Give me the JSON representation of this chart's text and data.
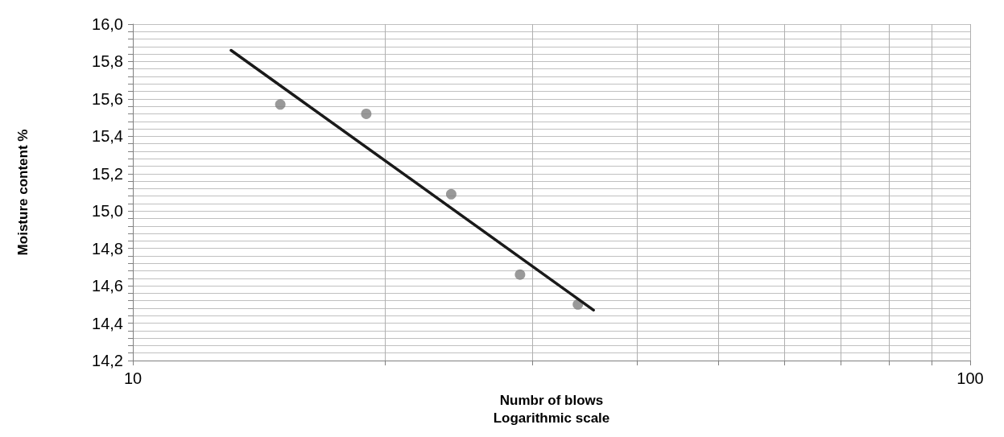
{
  "chart_data": {
    "type": "scatter",
    "xlabel": "Numbr of blows\nLogarithmic scale",
    "ylabel": "Moisture content %",
    "log": "x",
    "grid": true,
    "marker": "circle",
    "xlim": [
      10,
      100
    ],
    "xticks": [
      10,
      {
        "value": 20,
        "label": null
      },
      {
        "value": 30,
        "label": null
      },
      {
        "value": 40,
        "label": null
      },
      {
        "value": 50,
        "label": null
      },
      {
        "value": 60,
        "label": null
      },
      {
        "value": 70,
        "label": null
      },
      {
        "value": 80,
        "label": null
      },
      {
        "value": 90,
        "label": null
      },
      100
    ],
    "ylim": [
      14.2,
      16.0
    ],
    "yticks": [
      {
        "value": 14.2,
        "label": "14,2"
      },
      {
        "value": 14.24,
        "label": null
      },
      {
        "value": 14.28,
        "label": null
      },
      {
        "value": 14.32,
        "label": null
      },
      {
        "value": 14.36,
        "label": null
      },
      {
        "value": 14.4,
        "label": "14,4"
      },
      {
        "value": 14.44,
        "label": null
      },
      {
        "value": 14.48,
        "label": null
      },
      {
        "value": 14.52,
        "label": null
      },
      {
        "value": 14.56,
        "label": null
      },
      {
        "value": 14.6,
        "label": "14,6"
      },
      {
        "value": 14.64,
        "label": null
      },
      {
        "value": 14.68,
        "label": null
      },
      {
        "value": 14.72,
        "label": null
      },
      {
        "value": 14.76,
        "label": null
      },
      {
        "value": 14.8,
        "label": "14,8"
      },
      {
        "value": 14.84,
        "label": null
      },
      {
        "value": 14.88,
        "label": null
      },
      {
        "value": 14.92,
        "label": null
      },
      {
        "value": 14.96,
        "label": null
      },
      {
        "value": 15.0,
        "label": "15,0"
      },
      {
        "value": 15.04,
        "label": null
      },
      {
        "value": 15.08,
        "label": null
      },
      {
        "value": 15.12,
        "label": null
      },
      {
        "value": 15.16,
        "label": null
      },
      {
        "value": 15.2,
        "label": "15,2"
      },
      {
        "value": 15.24,
        "label": null
      },
      {
        "value": 15.28,
        "label": null
      },
      {
        "value": 15.32,
        "label": null
      },
      {
        "value": 15.36,
        "label": null
      },
      {
        "value": 15.4,
        "label": "15,4"
      },
      {
        "value": 15.44,
        "label": null
      },
      {
        "value": 15.48,
        "label": null
      },
      {
        "value": 15.52,
        "label": null
      },
      {
        "value": 15.56,
        "label": null
      },
      {
        "value": 15.6,
        "label": "15,6"
      },
      {
        "value": 15.64,
        "label": null
      },
      {
        "value": 15.68,
        "label": null
      },
      {
        "value": 15.72,
        "label": null
      },
      {
        "value": 15.76,
        "label": null
      },
      {
        "value": 15.8,
        "label": "15,8"
      },
      {
        "value": 15.84,
        "label": null
      },
      {
        "value": 15.88,
        "label": null
      },
      {
        "value": 15.92,
        "label": null
      },
      {
        "value": 15.96,
        "label": null
      },
      {
        "value": 16.0,
        "label": "16,0"
      }
    ],
    "series": [
      {
        "type": "scatter",
        "color": "#808080",
        "x": [
          15,
          19,
          24,
          29,
          34
        ],
        "values": [
          15.57,
          15.52,
          15.09,
          14.66,
          14.5
        ]
      },
      {
        "type": "line",
        "color": "#1a1a1a",
        "marker": "none",
        "x": [
          13.1,
          35.5
        ],
        "values": [
          15.86,
          14.47
        ]
      }
    ]
  }
}
